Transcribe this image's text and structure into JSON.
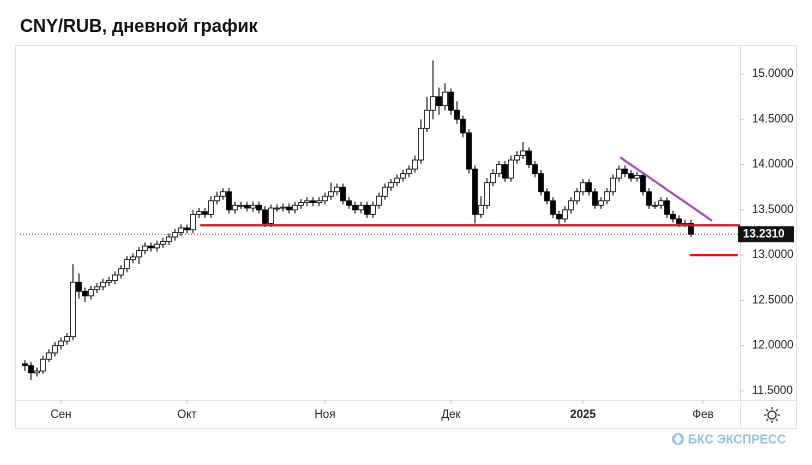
{
  "chart_data": {
    "type": "candlestick",
    "title": "CNY/RUB, дневной график",
    "brand": "БКС ЭКСПРЕСС",
    "up_color": "#ffffff",
    "down_color": "#000000",
    "open": [
      11.8,
      11.78,
      11.7,
      11.72,
      11.85,
      11.92,
      12.0,
      12.05,
      12.1,
      12.7,
      12.6,
      12.55,
      12.62,
      12.65,
      12.7,
      12.72,
      12.78,
      12.85,
      12.95,
      12.98,
      13.05,
      13.1,
      13.08,
      13.12,
      13.15,
      13.2,
      13.25,
      13.3,
      13.28,
      13.45,
      13.48,
      13.45,
      13.6,
      13.65,
      13.7,
      13.5,
      13.55,
      13.55,
      13.52,
      13.55,
      13.5,
      13.35,
      13.52,
      13.52,
      13.53,
      13.5,
      13.55,
      13.58,
      13.6,
      13.58,
      13.6,
      13.65,
      13.7,
      13.75,
      13.6,
      13.55,
      13.5,
      13.55,
      13.45,
      13.55,
      13.65,
      13.75,
      13.8,
      13.85,
      13.9,
      13.95,
      14.05,
      14.4,
      14.6,
      14.75,
      14.65,
      14.8,
      14.6,
      14.5,
      14.35,
      13.95,
      13.45,
      13.55,
      13.8,
      13.9,
      14.0,
      13.85,
      14.05,
      14.1,
      14.15,
      14.0,
      13.9,
      13.7,
      13.6,
      13.45,
      13.4,
      13.5,
      13.6,
      13.7,
      13.8,
      13.7,
      13.55,
      13.6,
      13.7,
      13.85,
      13.95,
      13.9,
      13.85,
      13.88,
      13.7,
      13.55,
      13.55,
      13.6,
      13.45,
      13.4,
      13.35,
      13.35
    ],
    "high": [
      11.84,
      11.82,
      11.76,
      11.89,
      11.96,
      12.04,
      12.09,
      12.14,
      12.9,
      12.8,
      12.64,
      12.66,
      12.69,
      12.74,
      12.76,
      12.82,
      12.89,
      12.99,
      13.02,
      13.09,
      13.14,
      13.14,
      13.16,
      13.19,
      13.24,
      13.29,
      13.34,
      13.34,
      13.5,
      13.52,
      13.52,
      13.65,
      13.7,
      13.74,
      13.74,
      13.59,
      13.59,
      13.59,
      13.59,
      13.59,
      13.54,
      13.56,
      13.56,
      13.57,
      13.57,
      13.59,
      13.62,
      13.64,
      13.64,
      13.64,
      13.69,
      13.8,
      13.79,
      13.79,
      13.64,
      13.59,
      13.59,
      13.59,
      13.59,
      13.69,
      13.79,
      13.84,
      13.89,
      13.94,
      13.99,
      14.1,
      14.5,
      14.75,
      15.15,
      14.85,
      14.9,
      14.84,
      14.7,
      14.54,
      14.39,
      13.99,
      13.65,
      13.85,
      13.95,
      14.04,
      14.04,
      14.1,
      14.15,
      14.25,
      14.19,
      14.04,
      13.94,
      13.74,
      13.64,
      13.49,
      13.54,
      13.64,
      13.74,
      13.84,
      13.84,
      13.74,
      13.64,
      13.74,
      13.89,
      13.99,
      13.99,
      13.94,
      13.92,
      13.92,
      13.74,
      13.59,
      13.64,
      13.64,
      13.49,
      13.44,
      13.39,
      13.39
    ],
    "low": [
      11.72,
      11.62,
      11.66,
      11.69,
      11.82,
      11.88,
      11.96,
      12.01,
      12.06,
      12.52,
      12.48,
      12.51,
      12.58,
      12.61,
      12.66,
      12.68,
      12.74,
      12.81,
      12.91,
      12.9,
      13.01,
      13.04,
      13.04,
      13.08,
      13.11,
      13.16,
      13.21,
      13.24,
      13.24,
      13.41,
      13.41,
      13.41,
      13.56,
      13.61,
      13.46,
      13.46,
      13.51,
      13.48,
      13.48,
      13.46,
      13.31,
      13.31,
      13.48,
      13.48,
      13.46,
      13.46,
      13.51,
      13.54,
      13.54,
      13.54,
      13.56,
      13.61,
      13.66,
      13.56,
      13.51,
      13.46,
      13.46,
      13.41,
      13.41,
      13.51,
      13.61,
      13.71,
      13.76,
      13.81,
      13.86,
      13.91,
      14.01,
      14.36,
      14.5,
      14.55,
      14.6,
      14.55,
      14.45,
      14.3,
      13.9,
      13.35,
      13.41,
      13.51,
      13.76,
      13.86,
      13.81,
      13.81,
      14.01,
      14.06,
      13.96,
      13.86,
      13.66,
      13.56,
      13.41,
      13.34,
      13.36,
      13.46,
      13.56,
      13.66,
      13.66,
      13.51,
      13.51,
      13.56,
      13.66,
      13.81,
      13.86,
      13.81,
      13.81,
      13.66,
      13.51,
      13.51,
      13.51,
      13.41,
      13.36,
      13.31,
      13.31,
      13.2
    ],
    "close": [
      11.78,
      11.7,
      11.72,
      11.85,
      11.92,
      12.0,
      12.05,
      12.1,
      12.7,
      12.6,
      12.55,
      12.62,
      12.65,
      12.7,
      12.72,
      12.78,
      12.85,
      12.95,
      12.98,
      13.05,
      13.1,
      13.08,
      13.12,
      13.15,
      13.2,
      13.25,
      13.3,
      13.28,
      13.45,
      13.48,
      13.45,
      13.6,
      13.65,
      13.7,
      13.5,
      13.55,
      13.55,
      13.52,
      13.55,
      13.5,
      13.35,
      13.52,
      13.52,
      13.53,
      13.5,
      13.55,
      13.58,
      13.6,
      13.58,
      13.6,
      13.65,
      13.7,
      13.75,
      13.6,
      13.55,
      13.5,
      13.55,
      13.45,
      13.55,
      13.65,
      13.75,
      13.8,
      13.85,
      13.9,
      13.95,
      14.05,
      14.4,
      14.6,
      14.75,
      14.65,
      14.8,
      14.6,
      14.5,
      14.35,
      13.95,
      13.45,
      13.55,
      13.8,
      13.9,
      14.0,
      13.85,
      14.05,
      14.1,
      14.15,
      14.0,
      13.9,
      13.7,
      13.6,
      13.45,
      13.4,
      13.5,
      13.6,
      13.7,
      13.8,
      13.7,
      13.55,
      13.6,
      13.7,
      13.85,
      13.95,
      13.9,
      13.85,
      13.88,
      13.7,
      13.55,
      13.55,
      13.6,
      13.45,
      13.4,
      13.35,
      13.35,
      13.231
    ],
    "last_price": {
      "value": 13.231,
      "label": "13.2310"
    },
    "xlim": [
      -0.83,
      119.17
    ],
    "xticks": [
      {
        "value": 6,
        "label": "Сен"
      },
      {
        "value": 27,
        "label": "Окт"
      },
      {
        "value": 50,
        "label": "Ноя"
      },
      {
        "value": 71,
        "label": "Дек"
      },
      {
        "value": 93,
        "label": "2025"
      },
      {
        "value": 113,
        "label": "Фев"
      }
    ],
    "ylim": [
      11.4,
      15.21
    ],
    "yticks": [
      {
        "value": 11.5,
        "label": "11.5000"
      },
      {
        "value": 12,
        "label": "12.0000"
      },
      {
        "value": 12.5,
        "label": "12.5000"
      },
      {
        "value": 13,
        "label": "13.0000"
      },
      {
        "value": 13.5,
        "label": "13.5000"
      },
      {
        "value": 14,
        "label": "14.0000"
      },
      {
        "value": 14.5,
        "label": "14.5000"
      },
      {
        "value": 15,
        "label": "15.0000"
      }
    ],
    "lines": [
      {
        "color": "#a64dbf",
        "points": [
          [
            99.2,
            14.08
          ],
          [
            114.5,
            13.38
          ]
        ]
      },
      {
        "color": "#d9151c",
        "points": [
          [
            29.2,
            13.33
          ],
          [
            119.17,
            13.33
          ]
        ]
      },
      {
        "color": "#d9151c",
        "points": [
          [
            110.8,
            13.0
          ],
          [
            118.8,
            13.0
          ]
        ]
      }
    ]
  }
}
